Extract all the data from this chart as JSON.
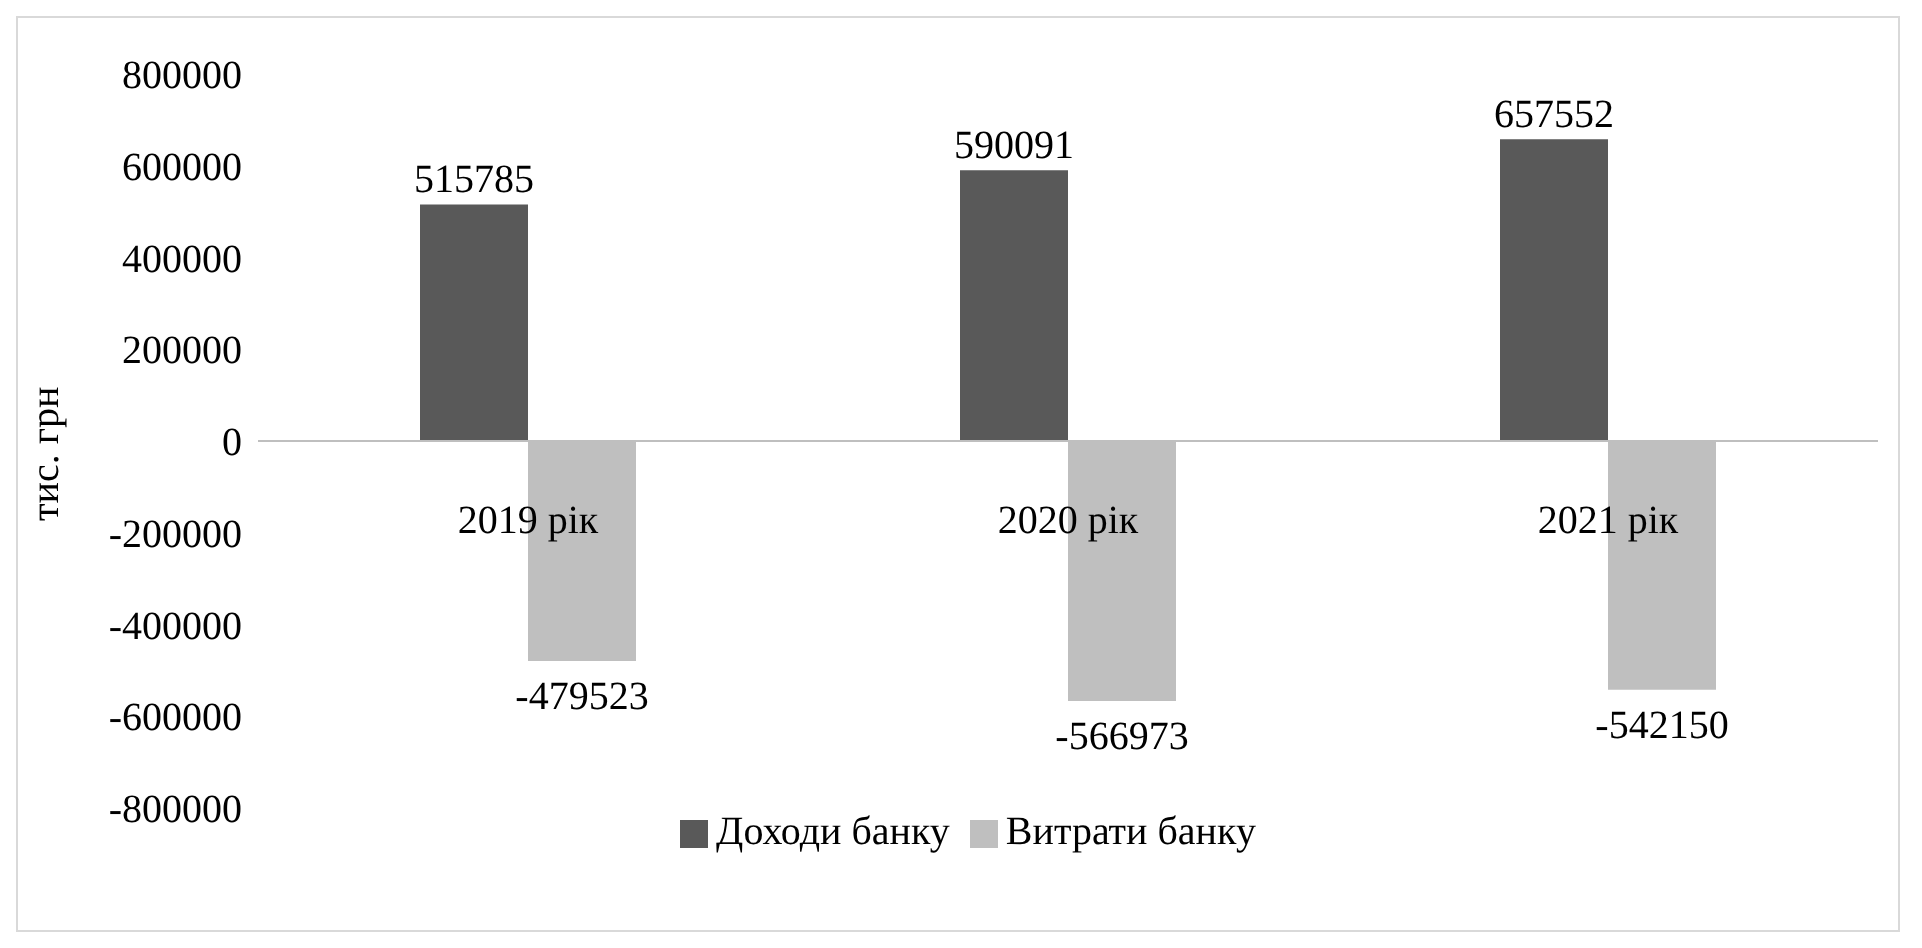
{
  "chart_data": {
    "type": "bar",
    "ylabel": "тис. грн",
    "categories": [
      "2019 рік",
      "2020 рік",
      "2021 рік"
    ],
    "series": [
      {
        "name": "Доходи банку",
        "color": "#595959",
        "values": [
          515785,
          590091,
          657552
        ]
      },
      {
        "name": "Витрати банку",
        "color": "#bfbfbf",
        "values": [
          -479523,
          -566973,
          -542150
        ]
      }
    ],
    "ylim": [
      -800000,
      800000
    ],
    "yticks": [
      -800000,
      -600000,
      -400000,
      -200000,
      0,
      200000,
      400000,
      600000,
      800000
    ],
    "grid": false,
    "legend": "bottom",
    "data_labels": true
  }
}
